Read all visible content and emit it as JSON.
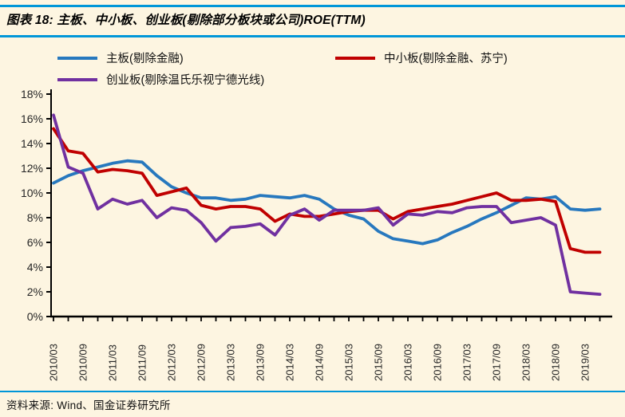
{
  "header": {
    "title": "图表 18: 主板、中小板、创业板(剔除部分板块或公司)ROE(TTM)"
  },
  "footer": {
    "source": "资料来源: Wind、国金证券研究所"
  },
  "colors": {
    "background": "#FDF5E1",
    "rule_blue": "#0096D8",
    "axis": "#000000",
    "tick_text": "#262626",
    "main_board": "#2778BE",
    "sme_board": "#C00000",
    "chinext": "#7030A0"
  },
  "chart_data": {
    "type": "line",
    "title": "主板、中小板、创业板(剔除部分板块或公司)ROE(TTM)",
    "x": [
      "2010/03",
      "2010/06",
      "2010/09",
      "2010/12",
      "2011/03",
      "2011/06",
      "2011/09",
      "2011/12",
      "2012/03",
      "2012/06",
      "2012/09",
      "2012/12",
      "2013/03",
      "2013/06",
      "2013/09",
      "2013/12",
      "2014/03",
      "2014/06",
      "2014/09",
      "2014/12",
      "2015/03",
      "2015/06",
      "2015/09",
      "2015/12",
      "2016/03",
      "2016/06",
      "2016/09",
      "2016/12",
      "2017/03",
      "2017/06",
      "2017/09",
      "2017/12",
      "2018/03",
      "2018/06",
      "2018/09",
      "2018/12",
      "2019/03",
      "2019/06"
    ],
    "xtick_labels": [
      "2010/03",
      "2010/09",
      "2011/03",
      "2011/09",
      "2012/03",
      "2012/09",
      "2013/03",
      "2013/09",
      "2014/03",
      "2014/09",
      "2015/03",
      "2015/09",
      "2016/03",
      "2016/09",
      "2017/03",
      "2017/09",
      "2018/03",
      "2018/09",
      "2019/03"
    ],
    "ytick_labels": [
      "0%",
      "2%",
      "4%",
      "6%",
      "8%",
      "10%",
      "12%",
      "14%",
      "16%",
      "18%"
    ],
    "ylim": [
      0,
      18
    ],
    "ytick_step": 2,
    "grid": false,
    "legend_position": "top",
    "series": [
      {
        "key": "main-board",
        "name": "主板(剔除金融)",
        "color": "#2778BE",
        "values": [
          10.8,
          11.4,
          11.8,
          12.1,
          12.4,
          12.6,
          12.5,
          11.4,
          10.5,
          10.0,
          9.6,
          9.6,
          9.4,
          9.5,
          9.8,
          9.7,
          9.6,
          9.8,
          9.5,
          8.7,
          8.2,
          7.9,
          6.9,
          6.3,
          6.1,
          5.9,
          6.2,
          6.8,
          7.3,
          7.9,
          8.4,
          9.0,
          9.6,
          9.5,
          9.7,
          8.7,
          8.6,
          8.7
        ]
      },
      {
        "key": "sme-board",
        "name": "中小板(剔除金融、苏宁)",
        "color": "#C00000",
        "values": [
          15.2,
          13.4,
          13.2,
          11.7,
          11.9,
          11.8,
          11.6,
          9.8,
          10.1,
          10.4,
          9.0,
          8.7,
          8.9,
          8.9,
          8.7,
          7.7,
          8.3,
          8.1,
          8.1,
          8.3,
          8.5,
          8.6,
          8.6,
          7.9,
          8.5,
          8.7,
          8.9,
          9.1,
          9.4,
          9.7,
          10.0,
          9.4,
          9.4,
          9.5,
          9.3,
          5.5,
          5.2,
          5.2
        ]
      },
      {
        "key": "chinext",
        "name": "创业板(剔除温氏乐视宁德光线)",
        "color": "#7030A0",
        "values": [
          16.3,
          12.1,
          11.6,
          8.7,
          9.5,
          9.1,
          9.4,
          8.0,
          8.8,
          8.6,
          7.6,
          6.1,
          7.2,
          7.3,
          7.5,
          6.6,
          8.2,
          8.7,
          7.8,
          8.6,
          8.6,
          8.6,
          8.8,
          7.4,
          8.3,
          8.2,
          8.5,
          8.4,
          8.8,
          8.9,
          8.9,
          7.6,
          7.8,
          8.0,
          7.4,
          2.0,
          1.9,
          1.8
        ]
      }
    ]
  }
}
